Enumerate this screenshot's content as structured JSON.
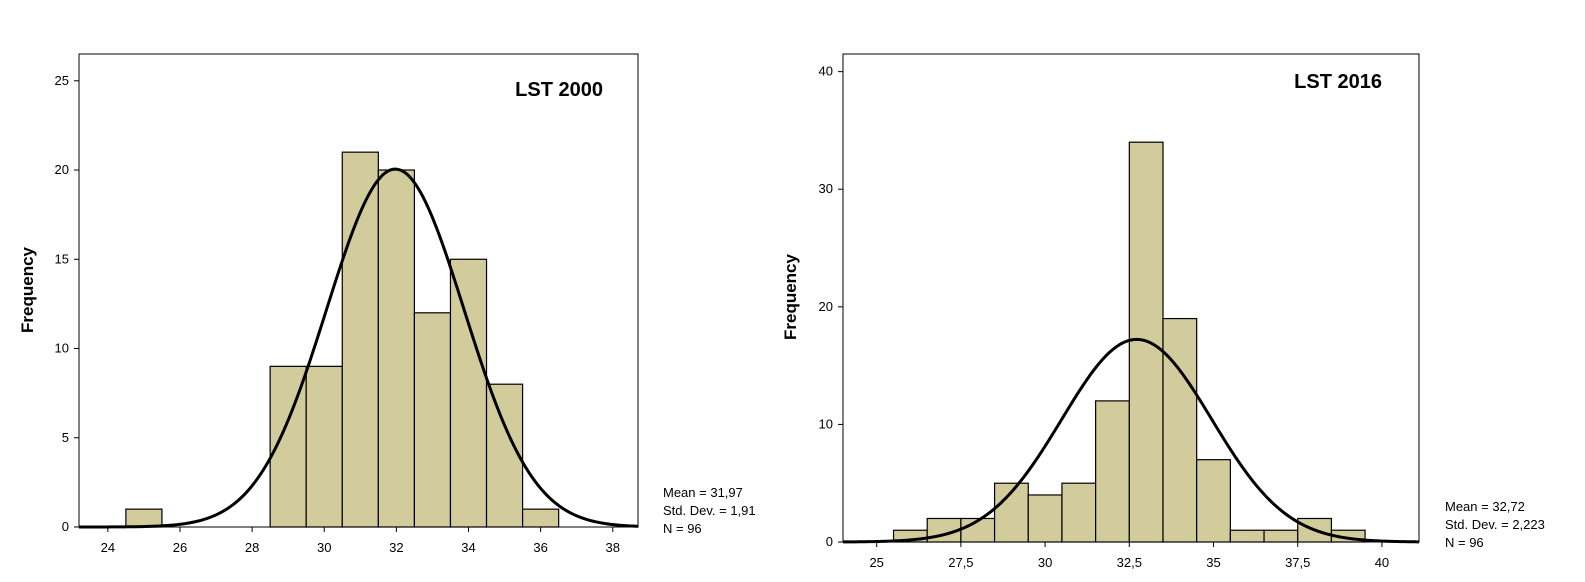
{
  "chart_data": [
    {
      "type": "bar",
      "title": "LST 2000",
      "ylabel": "Frequency",
      "xlabel": "",
      "xlim": [
        23.2,
        38.7
      ],
      "ylim": [
        0,
        26.5
      ],
      "xticks": [
        24,
        26,
        28,
        30,
        32,
        34,
        36,
        38
      ],
      "xtick_labels": [
        "24",
        "26",
        "28",
        "30",
        "32",
        "34",
        "36",
        "38"
      ],
      "yticks": [
        0,
        5,
        10,
        15,
        20,
        25
      ],
      "ytick_labels": [
        "0",
        "5",
        "10",
        "15",
        "20",
        "25"
      ],
      "bin_width": 1,
      "bins": [
        {
          "x": 25,
          "count": 1
        },
        {
          "x": 29,
          "count": 9
        },
        {
          "x": 30,
          "count": 9
        },
        {
          "x": 31,
          "count": 21
        },
        {
          "x": 32,
          "count": 20
        },
        {
          "x": 33,
          "count": 12
        },
        {
          "x": 34,
          "count": 15
        },
        {
          "x": 35,
          "count": 8
        },
        {
          "x": 36,
          "count": 1
        }
      ],
      "normal_curve": {
        "mean": 31.97,
        "sd": 1.91,
        "n": 96
      },
      "stats": [
        "Mean = 31,97",
        "Std. Dev. = 1,91",
        "N = 96"
      ],
      "grid": false,
      "bar_color": "#d2cc9c"
    },
    {
      "type": "bar",
      "title": "LST 2016",
      "ylabel": "Frequency",
      "xlabel": "",
      "xlim": [
        24,
        41.1
      ],
      "ylim": [
        0,
        41.5
      ],
      "xticks": [
        25,
        27.5,
        30,
        32.5,
        35,
        37.5,
        40
      ],
      "xtick_labels": [
        "25",
        "27,5",
        "30",
        "32,5",
        "35",
        "37,5",
        "40"
      ],
      "yticks": [
        0,
        10,
        20,
        30,
        40
      ],
      "ytick_labels": [
        "0",
        "10",
        "20",
        "30",
        "40"
      ],
      "bin_width": 1,
      "bins": [
        {
          "x": 26,
          "count": 1
        },
        {
          "x": 27,
          "count": 2
        },
        {
          "x": 28,
          "count": 2
        },
        {
          "x": 29,
          "count": 5
        },
        {
          "x": 30,
          "count": 4
        },
        {
          "x": 31,
          "count": 5
        },
        {
          "x": 32,
          "count": 12
        },
        {
          "x": 33,
          "count": 34
        },
        {
          "x": 34,
          "count": 19
        },
        {
          "x": 35,
          "count": 7
        },
        {
          "x": 36,
          "count": 1
        },
        {
          "x": 37,
          "count": 1
        },
        {
          "x": 38,
          "count": 2
        },
        {
          "x": 39,
          "count": 1
        }
      ],
      "normal_curve": {
        "mean": 32.72,
        "sd": 2.223,
        "n": 96
      },
      "stats": [
        "Mean = 32,72",
        "Std. Dev. = 2,223",
        "N = 96"
      ],
      "grid": false,
      "bar_color": "#d2cc9c"
    }
  ]
}
